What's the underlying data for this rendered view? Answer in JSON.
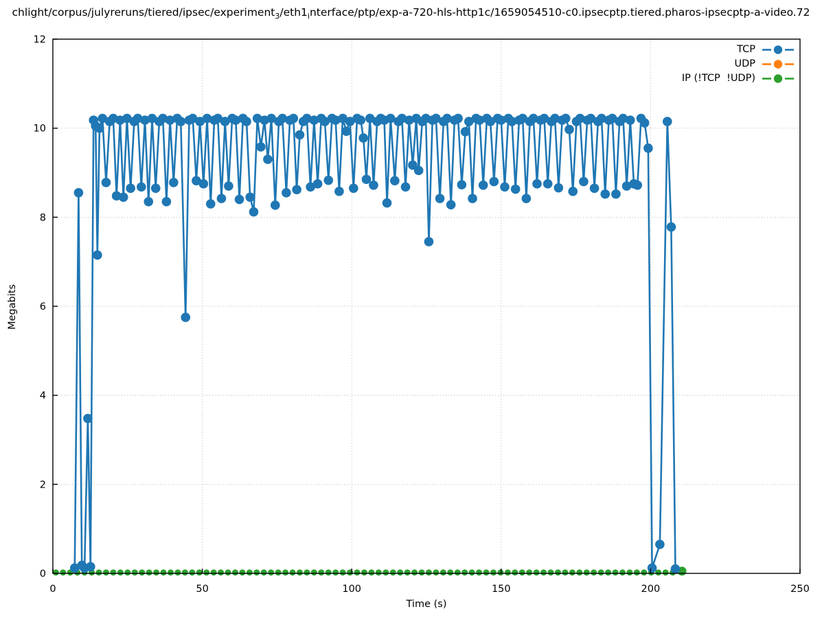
{
  "title": {
    "part1": "chlight/corpus/julyreruns/tiered/ipsec/experiment",
    "sub1": "3",
    "part2": "/eth1",
    "sub2": "i",
    "part3": "nterface/ptp/exp-a-720-hls-http1c/1659054510-c0.ipsecptp.tiered.pharos-ipsecptp-a-video.72"
  },
  "legend": {
    "position": "top-right",
    "entries": [
      {
        "label": "TCP",
        "color": "#1f77b4"
      },
      {
        "label": "UDP",
        "color": "#ff7f0e"
      },
      {
        "label": "IP (!TCP  !UDP)",
        "color": "#2ca02c"
      }
    ]
  },
  "chart_data": {
    "type": "line",
    "title": "chlight/corpus/julyreruns/tiered/ipsec/experiment_3/eth1_interface/ptp/exp-a-720-hls-http1c/1659054510-c0.ipsecptp.tiered.pharos-ipsecptp-a-video.72",
    "xlabel": "Time (s)",
    "ylabel": "Megabits",
    "xlim": [
      0,
      250
    ],
    "ylim": [
      0,
      12
    ],
    "xticks": [
      0,
      50,
      100,
      150,
      200,
      250
    ],
    "yticks": [
      0,
      2,
      4,
      6,
      8,
      10,
      12
    ],
    "grid": true,
    "grid_style": "dotted",
    "marker": "filled-circle",
    "series": [
      {
        "name": "TCP",
        "color": "#1f77b4",
        "points": [
          [
            7.3,
            0.12
          ],
          [
            8.6,
            8.55
          ],
          [
            9.7,
            0.18
          ],
          [
            10.6,
            0.12
          ],
          [
            11.7,
            3.48
          ],
          [
            12.6,
            0.15
          ],
          [
            13.6,
            10.18
          ],
          [
            14.3,
            10.05
          ],
          [
            14.9,
            7.15
          ],
          [
            15.6,
            10.0
          ],
          [
            16.6,
            10.22
          ],
          [
            17.8,
            8.78
          ],
          [
            19.0,
            10.15
          ],
          [
            20.2,
            10.22
          ],
          [
            21.3,
            8.48
          ],
          [
            22.5,
            10.18
          ],
          [
            23.6,
            8.45
          ],
          [
            24.8,
            10.22
          ],
          [
            26.0,
            8.65
          ],
          [
            27.2,
            10.15
          ],
          [
            28.4,
            10.22
          ],
          [
            29.6,
            8.68
          ],
          [
            30.8,
            10.18
          ],
          [
            32.0,
            8.35
          ],
          [
            33.2,
            10.22
          ],
          [
            34.4,
            8.65
          ],
          [
            35.6,
            10.15
          ],
          [
            36.8,
            10.22
          ],
          [
            38.0,
            8.35
          ],
          [
            39.2,
            10.18
          ],
          [
            40.4,
            8.78
          ],
          [
            41.6,
            10.22
          ],
          [
            42.8,
            10.15
          ],
          [
            44.4,
            5.75
          ],
          [
            45.6,
            10.18
          ],
          [
            46.8,
            10.22
          ],
          [
            48.0,
            8.82
          ],
          [
            49.2,
            10.15
          ],
          [
            50.4,
            8.75
          ],
          [
            51.6,
            10.22
          ],
          [
            52.8,
            8.3
          ],
          [
            54.0,
            10.18
          ],
          [
            55.2,
            10.22
          ],
          [
            56.4,
            8.42
          ],
          [
            57.6,
            10.15
          ],
          [
            58.8,
            8.7
          ],
          [
            60.0,
            10.22
          ],
          [
            61.2,
            10.18
          ],
          [
            62.4,
            8.4
          ],
          [
            63.6,
            10.22
          ],
          [
            64.8,
            10.15
          ],
          [
            66.0,
            8.45
          ],
          [
            67.2,
            8.12
          ],
          [
            68.4,
            10.22
          ],
          [
            69.6,
            9.58
          ],
          [
            70.8,
            10.18
          ],
          [
            71.9,
            9.3
          ],
          [
            73.1,
            10.22
          ],
          [
            74.4,
            8.27
          ],
          [
            75.6,
            10.15
          ],
          [
            76.8,
            10.22
          ],
          [
            78.1,
            8.55
          ],
          [
            79.3,
            10.18
          ],
          [
            80.5,
            10.22
          ],
          [
            81.6,
            8.62
          ],
          [
            82.6,
            9.85
          ],
          [
            83.8,
            10.15
          ],
          [
            85.0,
            10.22
          ],
          [
            86.2,
            8.68
          ],
          [
            87.4,
            10.18
          ],
          [
            88.6,
            8.75
          ],
          [
            89.8,
            10.22
          ],
          [
            91.0,
            10.15
          ],
          [
            92.2,
            8.83
          ],
          [
            93.4,
            10.22
          ],
          [
            94.6,
            10.18
          ],
          [
            95.8,
            8.58
          ],
          [
            97.0,
            10.22
          ],
          [
            98.2,
            9.93
          ],
          [
            99.4,
            10.15
          ],
          [
            100.6,
            8.65
          ],
          [
            101.8,
            10.22
          ],
          [
            103.0,
            10.18
          ],
          [
            103.9,
            9.78
          ],
          [
            104.9,
            8.85
          ],
          [
            106.1,
            10.22
          ],
          [
            107.3,
            8.72
          ],
          [
            108.5,
            10.15
          ],
          [
            109.7,
            10.22
          ],
          [
            110.9,
            10.18
          ],
          [
            111.8,
            8.32
          ],
          [
            113.0,
            10.22
          ],
          [
            114.4,
            8.82
          ],
          [
            115.6,
            10.15
          ],
          [
            116.8,
            10.22
          ],
          [
            118.0,
            8.68
          ],
          [
            119.2,
            10.18
          ],
          [
            120.4,
            9.17
          ],
          [
            121.6,
            10.22
          ],
          [
            122.4,
            9.05
          ],
          [
            123.6,
            10.15
          ],
          [
            124.8,
            10.22
          ],
          [
            125.8,
            7.45
          ],
          [
            127.0,
            10.18
          ],
          [
            128.2,
            10.22
          ],
          [
            129.5,
            8.42
          ],
          [
            130.7,
            10.15
          ],
          [
            131.9,
            10.22
          ],
          [
            133.2,
            8.28
          ],
          [
            134.4,
            10.18
          ],
          [
            135.6,
            10.22
          ],
          [
            136.8,
            8.73
          ],
          [
            138.0,
            9.92
          ],
          [
            139.2,
            10.15
          ],
          [
            140.4,
            8.42
          ],
          [
            141.6,
            10.22
          ],
          [
            142.8,
            10.18
          ],
          [
            144.0,
            8.72
          ],
          [
            145.2,
            10.22
          ],
          [
            146.4,
            10.15
          ],
          [
            147.6,
            8.8
          ],
          [
            148.8,
            10.22
          ],
          [
            150.0,
            10.18
          ],
          [
            151.2,
            8.68
          ],
          [
            152.4,
            10.22
          ],
          [
            153.6,
            10.15
          ],
          [
            154.8,
            8.63
          ],
          [
            156.0,
            10.18
          ],
          [
            157.2,
            10.22
          ],
          [
            158.4,
            8.42
          ],
          [
            159.6,
            10.15
          ],
          [
            160.8,
            10.22
          ],
          [
            162.0,
            8.75
          ],
          [
            163.2,
            10.18
          ],
          [
            164.4,
            10.22
          ],
          [
            165.6,
            8.75
          ],
          [
            166.8,
            10.15
          ],
          [
            168.0,
            10.22
          ],
          [
            169.2,
            8.66
          ],
          [
            170.4,
            10.18
          ],
          [
            171.6,
            10.22
          ],
          [
            172.8,
            9.97
          ],
          [
            174.0,
            8.58
          ],
          [
            175.2,
            10.15
          ],
          [
            176.4,
            10.22
          ],
          [
            177.6,
            8.8
          ],
          [
            178.8,
            10.18
          ],
          [
            180.0,
            10.22
          ],
          [
            181.2,
            8.65
          ],
          [
            182.4,
            10.15
          ],
          [
            183.6,
            10.22
          ],
          [
            184.8,
            8.52
          ],
          [
            186.0,
            10.18
          ],
          [
            187.2,
            10.22
          ],
          [
            188.4,
            8.52
          ],
          [
            189.6,
            10.15
          ],
          [
            190.8,
            10.22
          ],
          [
            192.0,
            8.7
          ],
          [
            193.2,
            10.18
          ],
          [
            194.4,
            8.75
          ],
          [
            195.6,
            8.72
          ],
          [
            196.8,
            10.22
          ],
          [
            198.0,
            10.12
          ],
          [
            199.2,
            9.55
          ],
          [
            200.5,
            0.12
          ],
          [
            203.1,
            0.65
          ],
          [
            205.6,
            10.15
          ],
          [
            206.9,
            7.78
          ],
          [
            208.3,
            0.1
          ]
        ]
      },
      {
        "name": "UDP",
        "color": "#ff7f0e",
        "points": []
      },
      {
        "name": "IP (!TCP  !UDP)",
        "color": "#2ca02c",
        "points": [
          [
            1.0,
            0.02
          ],
          [
            3.4,
            0.02
          ],
          [
            5.8,
            0.02
          ],
          [
            8.2,
            0.02
          ],
          [
            10.6,
            0.02
          ],
          [
            13.0,
            0.02
          ],
          [
            15.4,
            0.02
          ],
          [
            17.8,
            0.02
          ],
          [
            20.2,
            0.02
          ],
          [
            22.6,
            0.02
          ],
          [
            25.0,
            0.02
          ],
          [
            27.4,
            0.02
          ],
          [
            29.8,
            0.02
          ],
          [
            32.2,
            0.02
          ],
          [
            34.6,
            0.02
          ],
          [
            37.0,
            0.02
          ],
          [
            39.4,
            0.02
          ],
          [
            41.8,
            0.02
          ],
          [
            44.2,
            0.02
          ],
          [
            46.6,
            0.02
          ],
          [
            49.0,
            0.02
          ],
          [
            51.4,
            0.02
          ],
          [
            53.8,
            0.02
          ],
          [
            56.2,
            0.02
          ],
          [
            58.6,
            0.02
          ],
          [
            61.0,
            0.02
          ],
          [
            63.4,
            0.02
          ],
          [
            65.8,
            0.02
          ],
          [
            68.2,
            0.02
          ],
          [
            70.6,
            0.02
          ],
          [
            73.0,
            0.02
          ],
          [
            75.4,
            0.02
          ],
          [
            77.8,
            0.02
          ],
          [
            80.2,
            0.02
          ],
          [
            82.6,
            0.02
          ],
          [
            85.0,
            0.02
          ],
          [
            87.4,
            0.02
          ],
          [
            89.8,
            0.02
          ],
          [
            92.2,
            0.02
          ],
          [
            94.6,
            0.02
          ],
          [
            97.0,
            0.02
          ],
          [
            99.4,
            0.02
          ],
          [
            101.8,
            0.02
          ],
          [
            104.2,
            0.02
          ],
          [
            106.6,
            0.02
          ],
          [
            109.0,
            0.02
          ],
          [
            111.4,
            0.02
          ],
          [
            113.8,
            0.02
          ],
          [
            116.2,
            0.02
          ],
          [
            118.6,
            0.02
          ],
          [
            121.0,
            0.02
          ],
          [
            123.4,
            0.02
          ],
          [
            125.8,
            0.02
          ],
          [
            128.2,
            0.02
          ],
          [
            130.6,
            0.02
          ],
          [
            133.0,
            0.02
          ],
          [
            135.4,
            0.02
          ],
          [
            137.8,
            0.02
          ],
          [
            140.2,
            0.02
          ],
          [
            142.6,
            0.02
          ],
          [
            145.0,
            0.02
          ],
          [
            147.4,
            0.02
          ],
          [
            149.8,
            0.02
          ],
          [
            152.2,
            0.02
          ],
          [
            154.6,
            0.02
          ],
          [
            157.0,
            0.02
          ],
          [
            159.4,
            0.02
          ],
          [
            161.8,
            0.02
          ],
          [
            164.2,
            0.02
          ],
          [
            166.6,
            0.02
          ],
          [
            169.0,
            0.02
          ],
          [
            171.4,
            0.02
          ],
          [
            173.8,
            0.02
          ],
          [
            176.2,
            0.02
          ],
          [
            178.6,
            0.02
          ],
          [
            181.0,
            0.02
          ],
          [
            183.4,
            0.02
          ],
          [
            185.8,
            0.02
          ],
          [
            188.2,
            0.02
          ],
          [
            190.6,
            0.02
          ],
          [
            193.0,
            0.02
          ],
          [
            195.4,
            0.02
          ],
          [
            197.8,
            0.02
          ],
          [
            200.2,
            0.02
          ],
          [
            202.6,
            0.02
          ],
          [
            205.0,
            0.02
          ],
          [
            207.4,
            0.02
          ],
          [
            210.5,
            0.05
          ]
        ]
      }
    ]
  }
}
